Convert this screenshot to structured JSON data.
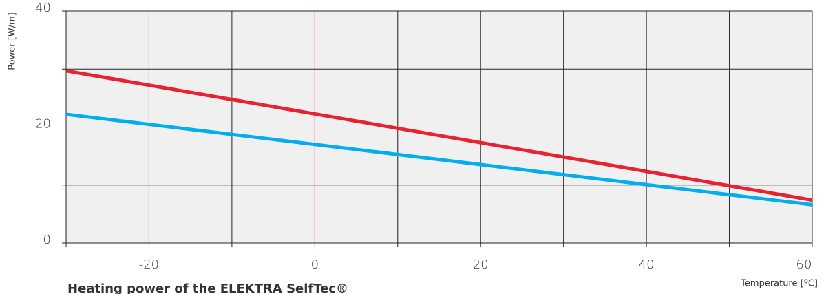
{
  "chart_data": {
    "type": "line",
    "title": "Heating power of the ELEKTRA SelfTec®",
    "y_label": "Power [W/m]",
    "x_label": "Temperature [ºC]",
    "x": [
      -30,
      60
    ],
    "series": [
      {
        "name": "red",
        "color": "#e8222e",
        "values": [
          29.7,
          7.4
        ]
      },
      {
        "name": "blue",
        "color": "#00aeef",
        "values": [
          22.2,
          6.6
        ]
      }
    ],
    "xlim": [
      -30,
      60
    ],
    "xticks": [
      -20,
      0,
      20,
      40,
      60
    ],
    "xminor": [
      -10,
      10,
      30,
      50
    ],
    "ylim": [
      0,
      40
    ],
    "yticks": [
      0,
      20,
      40
    ],
    "yminor": [
      10,
      30
    ],
    "zero_line_color": "#e8222e",
    "grid": true
  }
}
